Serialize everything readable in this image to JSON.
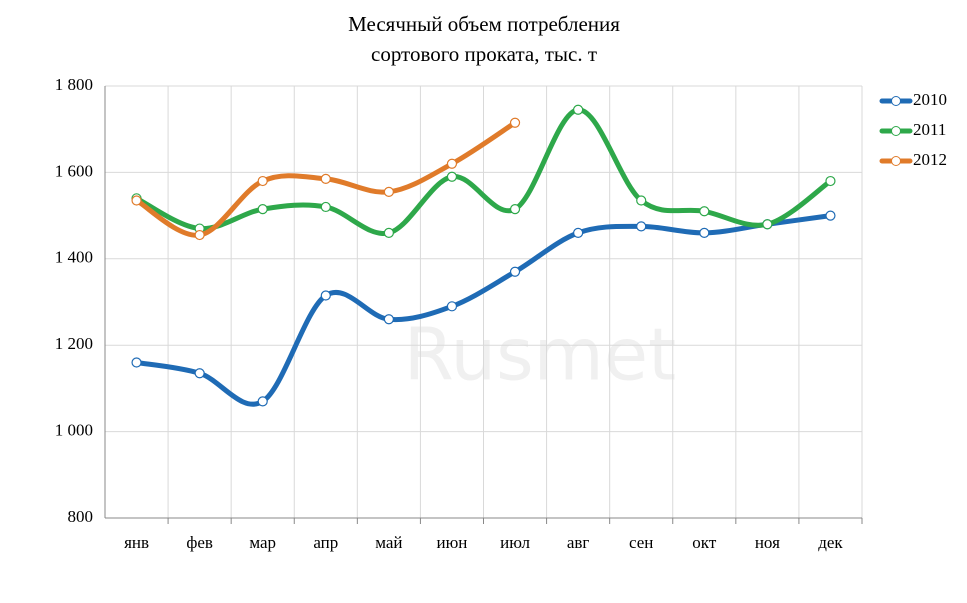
{
  "chart_data": {
    "type": "line",
    "title": [
      "Месячный объем потребления",
      "сортового проката, тыс. т"
    ],
    "watermark": "Rusmet",
    "categories": [
      "янв",
      "фев",
      "мар",
      "апр",
      "май",
      "июн",
      "июл",
      "авг",
      "сен",
      "окт",
      "ноя",
      "дек"
    ],
    "series": [
      {
        "name": "2010",
        "color": "#1f6bb5",
        "values": [
          1160,
          1135,
          1070,
          1315,
          1260,
          1290,
          1370,
          1460,
          1475,
          1460,
          1480,
          1500
        ]
      },
      {
        "name": "2011",
        "color": "#2ea84a",
        "values": [
          1540,
          1470,
          1515,
          1520,
          1460,
          1590,
          1515,
          1745,
          1535,
          1510,
          1480,
          1580
        ]
      },
      {
        "name": "2012",
        "color": "#e07b2a",
        "values": [
          1535,
          1455,
          1580,
          1585,
          1555,
          1620,
          1715,
          null,
          null,
          null,
          null,
          null
        ]
      }
    ],
    "ylim": [
      800,
      1800
    ],
    "yticks": [
      800,
      {
        "value": 1000,
        "label": "1 000"
      },
      {
        "value": 1200,
        "label": "1 200"
      },
      {
        "value": 1400,
        "label": "1 400"
      },
      {
        "value": 1600,
        "label": "1 600"
      },
      {
        "value": 1800,
        "label": "1 800"
      }
    ],
    "grid": true,
    "legend": "right",
    "smooth": true
  }
}
